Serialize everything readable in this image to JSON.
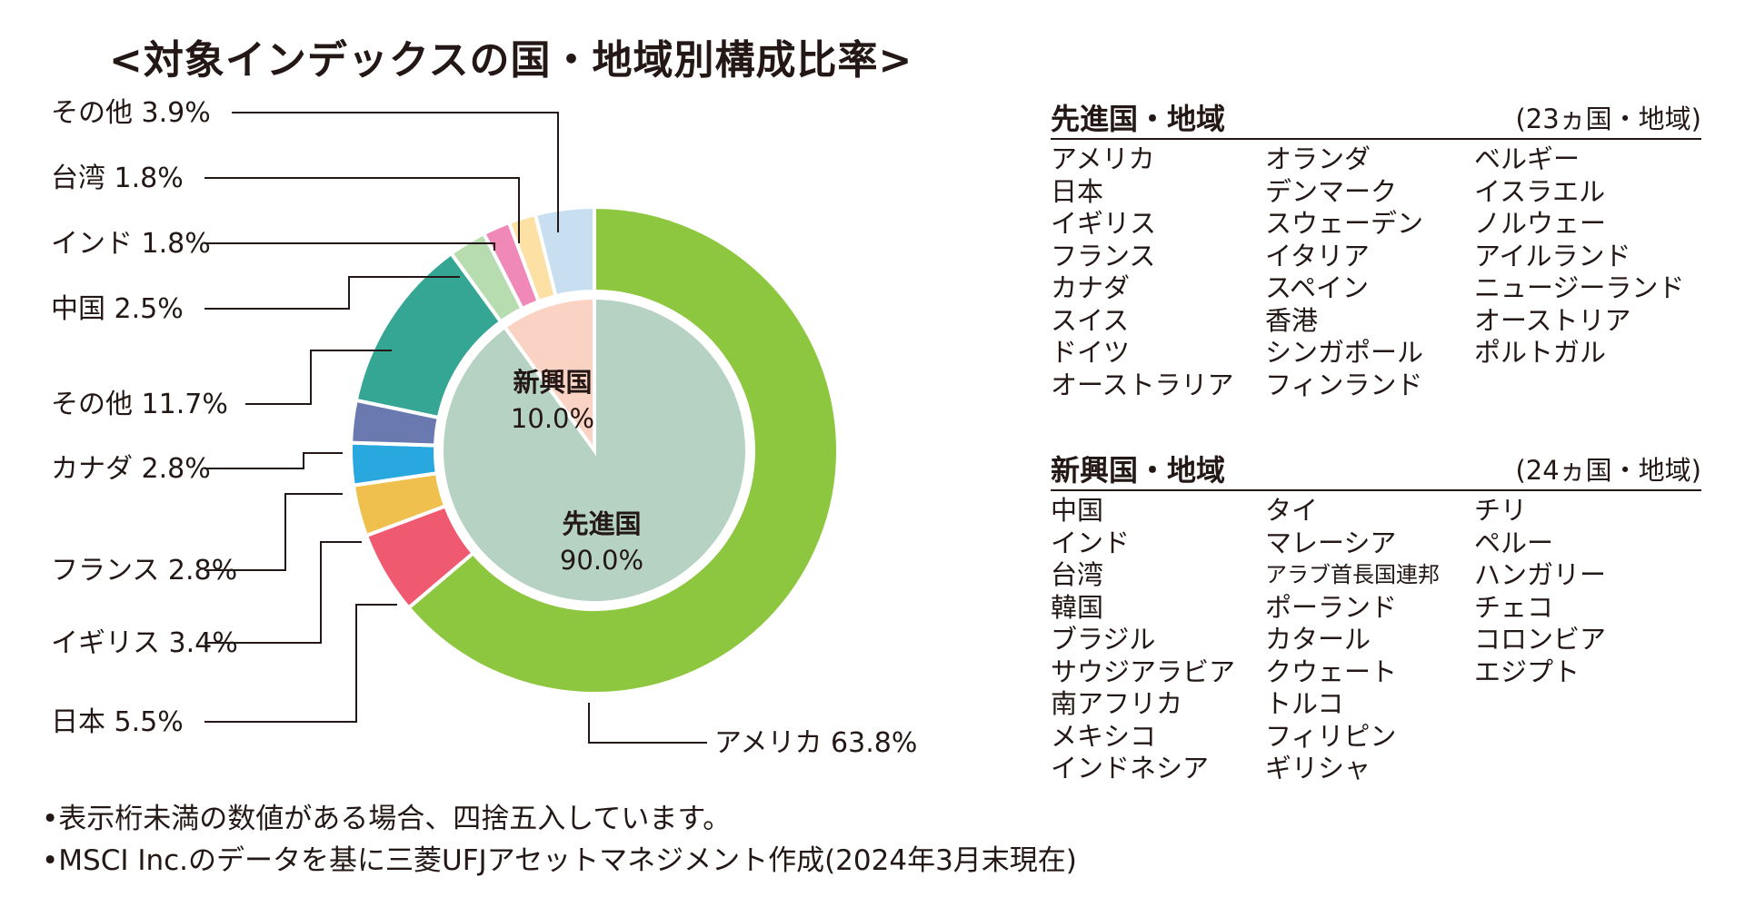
{
  "title": "<対象インデックスの国・地域別構成比率>",
  "chart_data": {
    "type": "pie",
    "outer": [
      {
        "name": "アメリカ",
        "value": 63.8,
        "color": "#8dc63f"
      },
      {
        "name": "日本",
        "value": 5.5,
        "color": "#ef5a71"
      },
      {
        "name": "イギリス",
        "value": 3.4,
        "color": "#f0c04e"
      },
      {
        "name": "フランス",
        "value": 2.8,
        "color": "#29a7df"
      },
      {
        "name": "カナダ",
        "value": 2.8,
        "color": "#6a79b0"
      },
      {
        "name": "その他",
        "value": 11.7,
        "color": "#35a594"
      },
      {
        "name": "中国",
        "value": 2.5,
        "color": "#b7dcb0"
      },
      {
        "name": "インド",
        "value": 1.8,
        "color": "#f089b7"
      },
      {
        "name": "台湾",
        "value": 1.8,
        "color": "#fde0a3"
      },
      {
        "name": "その他",
        "value": 3.9,
        "color": "#c8dff2"
      }
    ],
    "inner": [
      {
        "name": "先進国",
        "value": 90.0,
        "color": "#b6d2c3"
      },
      {
        "name": "新興国",
        "value": 10.0,
        "color": "#fad3c4"
      }
    ],
    "labels": [
      "アメリカ 63.8%",
      "日本 5.5%",
      "イギリス 3.4%",
      "フランス 2.8%",
      "カナダ 2.8%",
      "その他 11.7%",
      "中国 2.5%",
      "インド 1.8%",
      "台湾 1.8%",
      "その他 3.9%"
    ],
    "inner_labels": {
      "developed_name": "先進国",
      "developed_value": "90.0%",
      "emerging_name": "新興国",
      "emerging_value": "10.0%"
    }
  },
  "developed": {
    "heading": "先進国・地域",
    "count": "(23ヵ国・地域)",
    "columns": [
      [
        "アメリカ",
        "日本",
        "イギリス",
        "フランス",
        "カナダ",
        "スイス",
        "ドイツ",
        "オーストラリア"
      ],
      [
        "オランダ",
        "デンマーク",
        "スウェーデン",
        "イタリア",
        "スペイン",
        "香港",
        "シンガポール",
        "フィンランド"
      ],
      [
        "ベルギー",
        "イスラエル",
        "ノルウェー",
        "アイルランド",
        "ニュージーランド",
        "オーストリア",
        "ポルトガル"
      ]
    ]
  },
  "emerging": {
    "heading": "新興国・地域",
    "count": "(24ヵ国・地域)",
    "columns": [
      [
        "中国",
        "インド",
        "台湾",
        "韓国",
        "ブラジル",
        "サウジアラビア",
        "南アフリカ",
        "メキシコ",
        "インドネシア"
      ],
      [
        "タイ",
        "マレーシア",
        "アラブ首長国連邦",
        "ポーランド",
        "カタール",
        "クウェート",
        "トルコ",
        "フィリピン",
        "ギリシャ"
      ],
      [
        "チリ",
        "ペルー",
        "ハンガリー",
        "チェコ",
        "コロンビア",
        "エジプト"
      ]
    ]
  },
  "notes": [
    "•表示桁未満の数値がある場合、四捨五入しています。",
    "•MSCI Inc.のデータを基に三菱UFJアセットマネジメント作成(2024年3月末現在)"
  ]
}
